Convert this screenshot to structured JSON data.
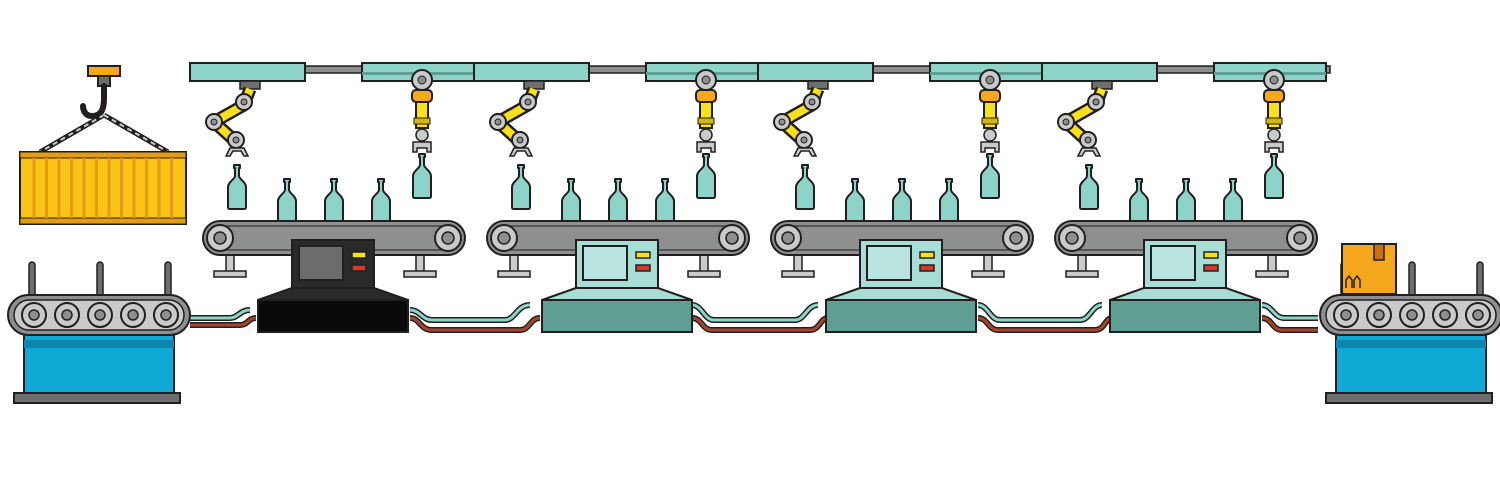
{
  "colors": {
    "outline": "#231f20",
    "teal": "#8dd3c7",
    "teal_dark": "#5f9e93",
    "teal_panel": "#a8ddd6",
    "screen_light": "#b9e4df",
    "gray": "#8e8f91",
    "gray_light": "#c9cacb",
    "gray_dark": "#6d6e70",
    "yellow": "#f6e11c",
    "yellow_dark": "#d4b80a",
    "orange": "#f6a81d",
    "crate": "#f9c416",
    "crate_dark": "#e39c12",
    "blue": "#11a9d6",
    "blue_dark": "#0f86ad",
    "red": "#d33a2c",
    "cable_red": "#a6452e",
    "cable_teal": "#8dd3c7",
    "black_console": "#0a0a0a",
    "dark_screen": "#6b6c6e",
    "box": "#f6a81d",
    "box_tape": "#c96f0d"
  },
  "icons": {
    "crane": "hook-icon",
    "container": "cargo-container-icon",
    "arm_articulated": "robot-arm-icon",
    "arm_vertical": "robot-gripper-icon",
    "bottle": "bottle-icon",
    "console": "control-console-icon",
    "box": "cardboard-box-icon",
    "conveyor": "conveyor-belt-icon"
  },
  "stations": [
    {
      "id": "station-1",
      "console_style": "dark"
    },
    {
      "id": "station-2",
      "console_style": "teal"
    },
    {
      "id": "station-3",
      "console_style": "teal"
    },
    {
      "id": "station-4",
      "console_style": "teal"
    }
  ],
  "bottles_on_belt_per_station": 3
}
